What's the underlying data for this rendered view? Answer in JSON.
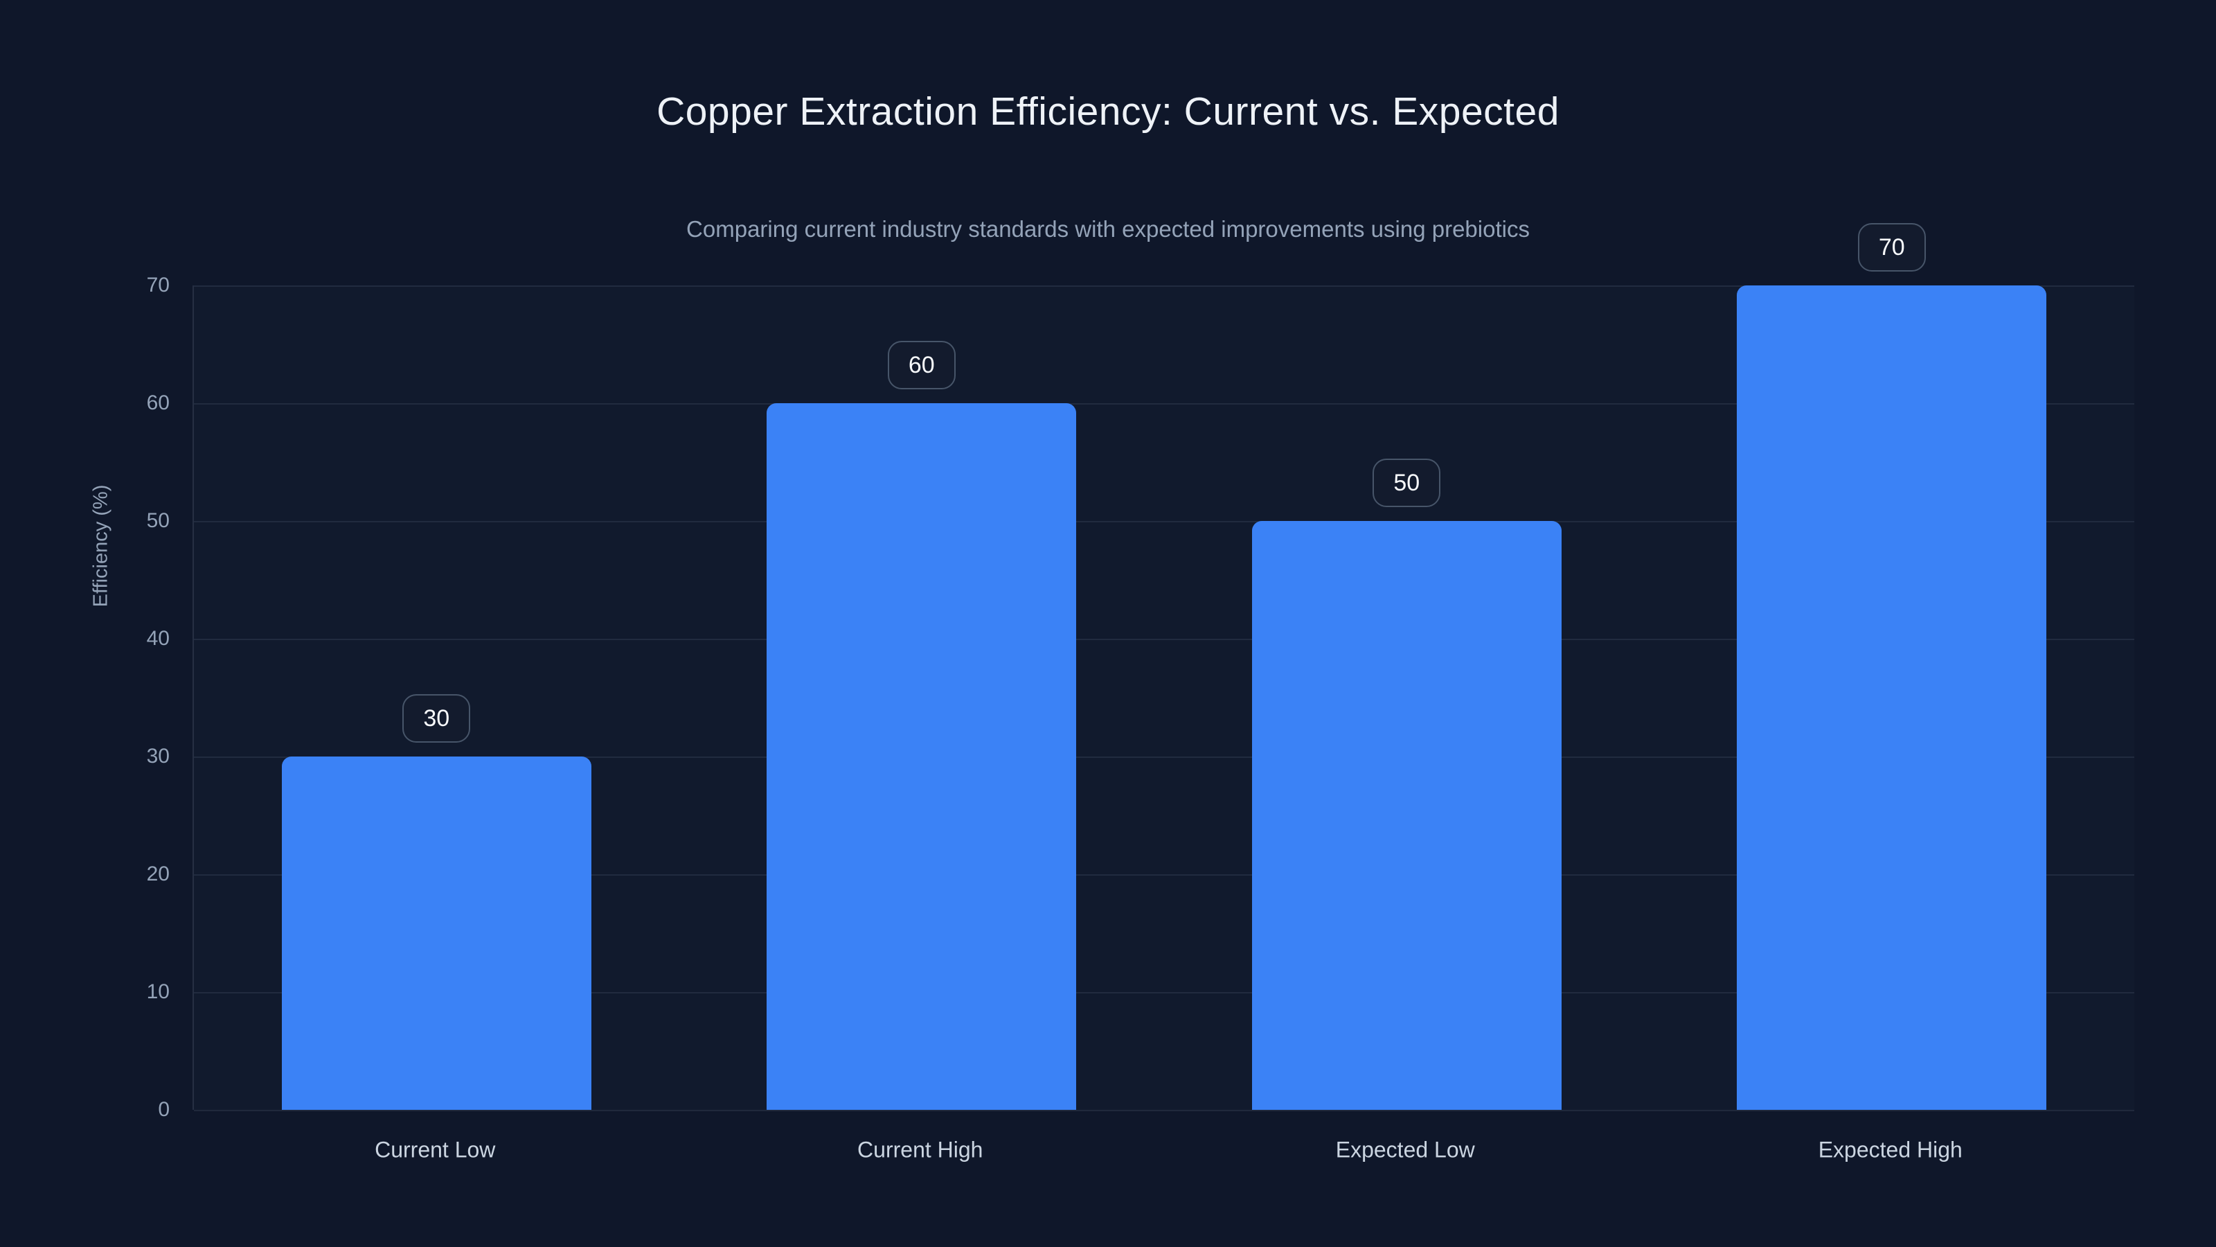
{
  "page": {
    "background_color": "#0f172a"
  },
  "chart_data": {
    "type": "bar",
    "title": "Copper Extraction Efficiency: Current vs. Expected",
    "subtitle": "Comparing current industry standards with expected improvements using prebiotics",
    "xlabel": "",
    "ylabel": "Efficiency (%)",
    "categories": [
      "Current Low",
      "Current High",
      "Expected Low",
      "Expected High"
    ],
    "values": [
      30,
      60,
      50,
      70
    ],
    "data_labels": [
      "30",
      "60",
      "50",
      "70"
    ],
    "ylim": [
      0,
      70
    ],
    "yticks": [
      0,
      10,
      20,
      30,
      40,
      50,
      60,
      70
    ],
    "grid": "horizontal",
    "legend": "none",
    "colors": {
      "bar": "#3b82f6",
      "background": "#0f172a",
      "title_text": "#eef2f7",
      "subtitle_text": "#94a3b8",
      "tick_text": "#94a3b8",
      "category_text": "#cbd5e1",
      "badge_border": "#475569",
      "badge_background": "#131b2d",
      "badge_text": "#f8fafc",
      "gridline": "rgba(148,163,184,0.13)"
    }
  }
}
